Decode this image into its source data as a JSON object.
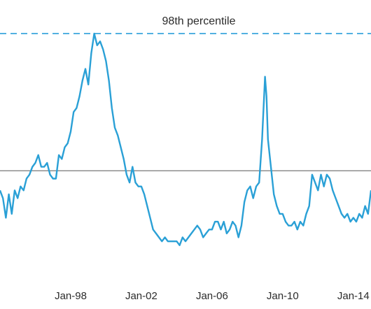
{
  "chart_data": {
    "type": "line",
    "title": "",
    "xlabel": "",
    "ylabel": "",
    "x_ticks": [
      "Jan-98",
      "Jan-02",
      "Jan-06",
      "Jan-10",
      "Jan-14"
    ],
    "reference_line": {
      "label": "98th percentile",
      "style": "dashed",
      "color": "#3aa6dd"
    },
    "baseline": {
      "color": "#777777"
    },
    "series": [
      {
        "color": "#2aa0d6",
        "points": [
          [
            "1994-01",
            -0.25
          ],
          [
            "1994-03",
            -0.35
          ],
          [
            "1994-05",
            -0.6
          ],
          [
            "1994-07",
            -0.3
          ],
          [
            "1994-09",
            -0.55
          ],
          [
            "1994-11",
            -0.25
          ],
          [
            "1995-01",
            -0.35
          ],
          [
            "1995-03",
            -0.2
          ],
          [
            "1995-05",
            -0.25
          ],
          [
            "1995-07",
            -0.1
          ],
          [
            "1995-09",
            -0.05
          ],
          [
            "1995-11",
            0.05
          ],
          [
            "1996-01",
            0.1
          ],
          [
            "1996-03",
            0.2
          ],
          [
            "1996-05",
            0.05
          ],
          [
            "1996-07",
            0.05
          ],
          [
            "1996-09",
            0.1
          ],
          [
            "1996-11",
            -0.05
          ],
          [
            "1997-01",
            -0.1
          ],
          [
            "1997-03",
            -0.1
          ],
          [
            "1997-05",
            0.2
          ],
          [
            "1997-07",
            0.15
          ],
          [
            "1997-09",
            0.3
          ],
          [
            "1997-11",
            0.35
          ],
          [
            "1998-01",
            0.5
          ],
          [
            "1998-03",
            0.75
          ],
          [
            "1998-05",
            0.8
          ],
          [
            "1998-07",
            0.95
          ],
          [
            "1998-09",
            1.15
          ],
          [
            "1998-11",
            1.3
          ],
          [
            "1999-01",
            1.1
          ],
          [
            "1999-03",
            1.5
          ],
          [
            "1999-05",
            1.75
          ],
          [
            "1999-07",
            1.6
          ],
          [
            "1999-09",
            1.65
          ],
          [
            "1999-11",
            1.55
          ],
          [
            "2000-01",
            1.4
          ],
          [
            "2000-03",
            1.15
          ],
          [
            "2000-05",
            0.8
          ],
          [
            "2000-07",
            0.55
          ],
          [
            "2000-09",
            0.45
          ],
          [
            "2000-11",
            0.3
          ],
          [
            "2001-01",
            0.15
          ],
          [
            "2001-03",
            -0.05
          ],
          [
            "2001-05",
            -0.15
          ],
          [
            "2001-07",
            0.05
          ],
          [
            "2001-09",
            -0.15
          ],
          [
            "2001-11",
            -0.2
          ],
          [
            "2002-01",
            -0.2
          ],
          [
            "2002-03",
            -0.3
          ],
          [
            "2002-05",
            -0.45
          ],
          [
            "2002-07",
            -0.6
          ],
          [
            "2002-09",
            -0.75
          ],
          [
            "2002-11",
            -0.8
          ],
          [
            "2003-01",
            -0.85
          ],
          [
            "2003-03",
            -0.9
          ],
          [
            "2003-05",
            -0.85
          ],
          [
            "2003-07",
            -0.9
          ],
          [
            "2003-09",
            -0.9
          ],
          [
            "2003-11",
            -0.9
          ],
          [
            "2004-01",
            -0.9
          ],
          [
            "2004-03",
            -0.95
          ],
          [
            "2004-05",
            -0.85
          ],
          [
            "2004-07",
            -0.9
          ],
          [
            "2004-09",
            -0.85
          ],
          [
            "2004-11",
            -0.8
          ],
          [
            "2005-01",
            -0.75
          ],
          [
            "2005-03",
            -0.7
          ],
          [
            "2005-05",
            -0.75
          ],
          [
            "2005-07",
            -0.85
          ],
          [
            "2005-09",
            -0.8
          ],
          [
            "2005-11",
            -0.75
          ],
          [
            "2006-01",
            -0.75
          ],
          [
            "2006-03",
            -0.65
          ],
          [
            "2006-05",
            -0.65
          ],
          [
            "2006-07",
            -0.75
          ],
          [
            "2006-09",
            -0.65
          ],
          [
            "2006-11",
            -0.8
          ],
          [
            "2007-01",
            -0.75
          ],
          [
            "2007-03",
            -0.65
          ],
          [
            "2007-05",
            -0.7
          ],
          [
            "2007-07",
            -0.85
          ],
          [
            "2007-09",
            -0.7
          ],
          [
            "2007-11",
            -0.4
          ],
          [
            "2008-01",
            -0.25
          ],
          [
            "2008-03",
            -0.2
          ],
          [
            "2008-05",
            -0.35
          ],
          [
            "2008-07",
            -0.2
          ],
          [
            "2008-09",
            -0.15
          ],
          [
            "2008-11",
            0.4
          ],
          [
            "2009-01",
            1.2
          ],
          [
            "2009-02",
            0.95
          ],
          [
            "2009-03",
            0.4
          ],
          [
            "2009-05",
            0.05
          ],
          [
            "2009-07",
            -0.3
          ],
          [
            "2009-09",
            -0.45
          ],
          [
            "2009-11",
            -0.55
          ],
          [
            "2010-01",
            -0.55
          ],
          [
            "2010-03",
            -0.65
          ],
          [
            "2010-05",
            -0.7
          ],
          [
            "2010-07",
            -0.7
          ],
          [
            "2010-09",
            -0.65
          ],
          [
            "2010-11",
            -0.75
          ],
          [
            "2011-01",
            -0.65
          ],
          [
            "2011-03",
            -0.7
          ],
          [
            "2011-05",
            -0.55
          ],
          [
            "2011-07",
            -0.45
          ],
          [
            "2011-09",
            -0.05
          ],
          [
            "2011-11",
            -0.15
          ],
          [
            "2012-01",
            -0.25
          ],
          [
            "2012-03",
            -0.05
          ],
          [
            "2012-05",
            -0.2
          ],
          [
            "2012-07",
            -0.05
          ],
          [
            "2012-09",
            -0.1
          ],
          [
            "2012-11",
            -0.25
          ],
          [
            "2013-01",
            -0.35
          ],
          [
            "2013-03",
            -0.45
          ],
          [
            "2013-05",
            -0.55
          ],
          [
            "2013-07",
            -0.6
          ],
          [
            "2013-09",
            -0.55
          ],
          [
            "2013-11",
            -0.65
          ],
          [
            "2014-01",
            -0.6
          ],
          [
            "2014-03",
            -0.65
          ],
          [
            "2014-05",
            -0.55
          ],
          [
            "2014-07",
            -0.6
          ],
          [
            "2014-09",
            -0.45
          ],
          [
            "2014-11",
            -0.55
          ],
          [
            "2015-01",
            -0.25
          ]
        ]
      }
    ],
    "reference_value": 1.75,
    "baseline_value": 0,
    "xlim": [
      "1994-01",
      "2015-01"
    ],
    "ylim": [
      -1.3,
      2.0
    ],
    "grid": false,
    "legend": "none"
  }
}
